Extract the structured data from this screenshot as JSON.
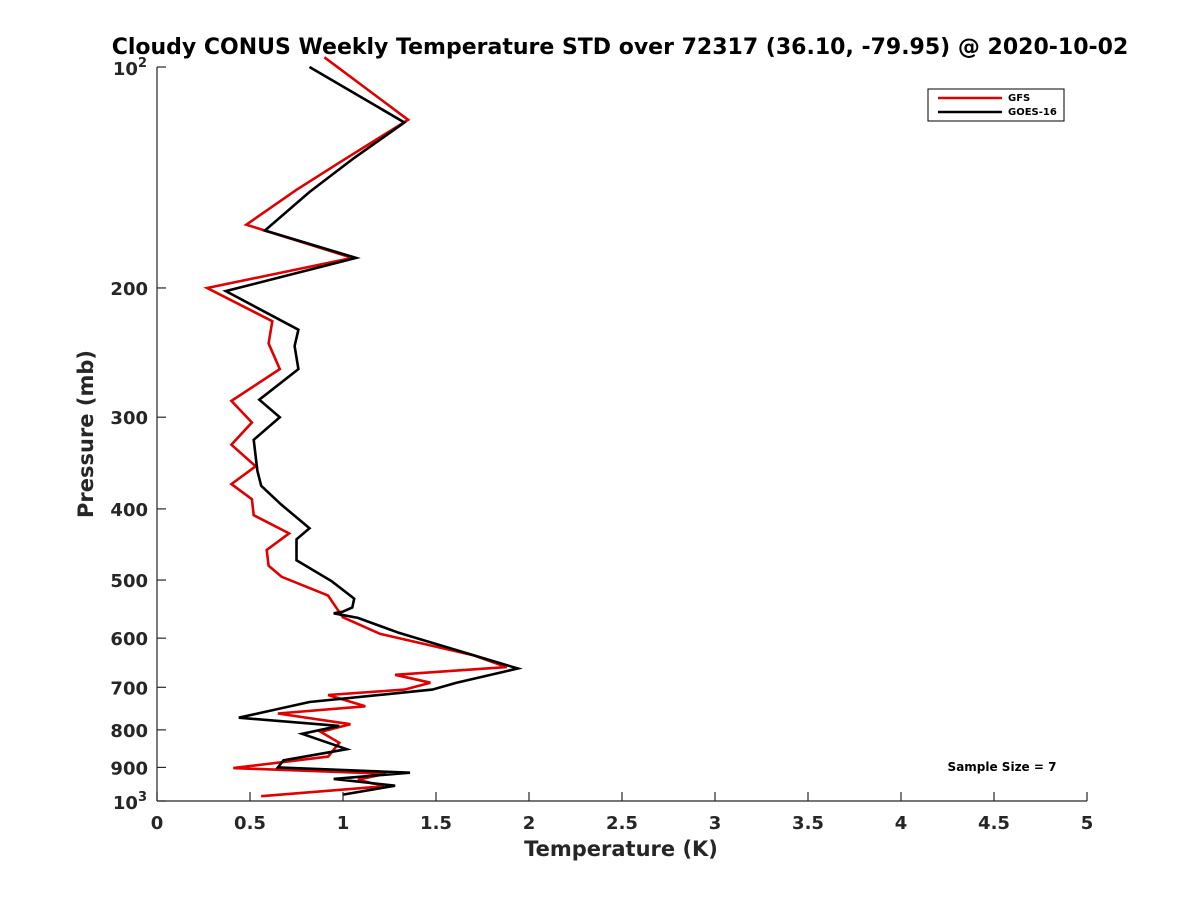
{
  "chart_data": {
    "type": "line",
    "title": "Cloudy CONUS Weekly Temperature STD over 72317 (36.10, -79.95) @ 2020-10-02",
    "xlabel": "Temperature (K)",
    "ylabel": "Pressure (mb)",
    "xlim": [
      0,
      5
    ],
    "ylim": [
      100,
      1000
    ],
    "y_scale": "log",
    "y_reversed": true,
    "xticks": [
      0,
      0.5,
      1,
      1.5,
      2,
      2.5,
      3,
      3.5,
      4,
      4.5,
      5
    ],
    "xtick_labels": [
      "0",
      "0.5",
      "1",
      "1.5",
      "2",
      "2.5",
      "3",
      "3.5",
      "4",
      "4.5",
      "5"
    ],
    "yticks": [
      100,
      200,
      300,
      400,
      500,
      600,
      700,
      800,
      900,
      1000
    ],
    "ytick_labels": [
      {
        "base": "10",
        "exp": "2"
      },
      {
        "base": "200",
        "exp": ""
      },
      {
        "base": "300",
        "exp": ""
      },
      {
        "base": "400",
        "exp": ""
      },
      {
        "base": "500",
        "exp": ""
      },
      {
        "base": "600",
        "exp": ""
      },
      {
        "base": "700",
        "exp": ""
      },
      {
        "base": "800",
        "exp": ""
      },
      {
        "base": "900",
        "exp": ""
      },
      {
        "base": "10",
        "exp": "3"
      }
    ],
    "grid": false,
    "legend_position": "top-right",
    "annotation": "Sample Size = 7",
    "series": [
      {
        "name": "GFS",
        "color": "#e00000",
        "points": [
          [
            0.9,
            97
          ],
          [
            1.35,
            118
          ],
          [
            1.0,
            134
          ],
          [
            0.75,
            147
          ],
          [
            0.48,
            164
          ],
          [
            1.05,
            182
          ],
          [
            0.27,
            200
          ],
          [
            0.62,
            222
          ],
          [
            0.6,
            238
          ],
          [
            0.66,
            258
          ],
          [
            0.4,
            285
          ],
          [
            0.51,
            305
          ],
          [
            0.4,
            327
          ],
          [
            0.53,
            350
          ],
          [
            0.4,
            370
          ],
          [
            0.51,
            388
          ],
          [
            0.52,
            408
          ],
          [
            0.71,
            432
          ],
          [
            0.59,
            455
          ],
          [
            0.6,
            478
          ],
          [
            0.67,
            495
          ],
          [
            0.92,
            525
          ],
          [
            0.97,
            548
          ],
          [
            1.0,
            562
          ],
          [
            1.2,
            592
          ],
          [
            1.7,
            633
          ],
          [
            1.88,
            657
          ],
          [
            1.28,
            673
          ],
          [
            1.47,
            690
          ],
          [
            1.33,
            705
          ],
          [
            0.92,
            717
          ],
          [
            1.12,
            743
          ],
          [
            0.65,
            760
          ],
          [
            1.04,
            786
          ],
          [
            0.88,
            805
          ],
          [
            0.98,
            833
          ],
          [
            0.92,
            870
          ],
          [
            0.41,
            902
          ],
          [
            1.23,
            918
          ],
          [
            1.08,
            935
          ],
          [
            1.22,
            955
          ],
          [
            0.56,
            985
          ]
        ]
      },
      {
        "name": "GOES-16",
        "color": "#000000",
        "points": [
          [
            0.82,
            100
          ],
          [
            1.33,
            119
          ],
          [
            1.06,
            133
          ],
          [
            0.82,
            148
          ],
          [
            0.58,
            167
          ],
          [
            1.07,
            182
          ],
          [
            0.37,
            202
          ],
          [
            0.76,
            228
          ],
          [
            0.74,
            240
          ],
          [
            0.76,
            258
          ],
          [
            0.55,
            284
          ],
          [
            0.66,
            300
          ],
          [
            0.52,
            322
          ],
          [
            0.54,
            355
          ],
          [
            0.56,
            372
          ],
          [
            0.67,
            395
          ],
          [
            0.82,
            425
          ],
          [
            0.75,
            440
          ],
          [
            0.75,
            470
          ],
          [
            0.94,
            502
          ],
          [
            1.06,
            530
          ],
          [
            1.05,
            545
          ],
          [
            1.0,
            552
          ],
          [
            0.95,
            555
          ],
          [
            1.08,
            563
          ],
          [
            1.3,
            590
          ],
          [
            1.94,
            660
          ],
          [
            1.61,
            690
          ],
          [
            1.48,
            705
          ],
          [
            0.82,
            733
          ],
          [
            0.44,
            770
          ],
          [
            0.98,
            790
          ],
          [
            0.78,
            810
          ],
          [
            1.02,
            850
          ],
          [
            0.68,
            880
          ],
          [
            0.65,
            900
          ],
          [
            1.36,
            915
          ],
          [
            0.95,
            933
          ],
          [
            1.28,
            953
          ],
          [
            1.0,
            980
          ]
        ]
      }
    ]
  }
}
